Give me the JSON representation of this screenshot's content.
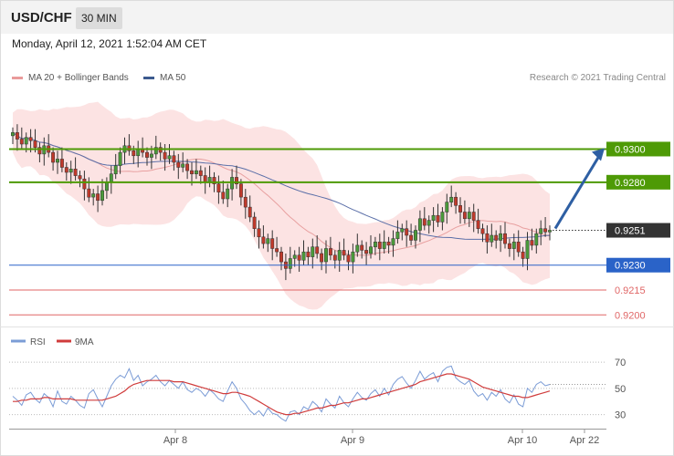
{
  "header": {
    "symbol": "USD/CHF",
    "timeframe": "30 MIN"
  },
  "timestamp": "Monday, April 12, 2021 1:52:04 AM CET",
  "copyright": "Research © 2021 Trading Central",
  "colors": {
    "bollinger_fill": "#fbd9d9",
    "ma20": "#e8a0a0",
    "ma50": "#5b6fa8",
    "bull_candle": "#4a9a3a",
    "bear_candle": "#c0392b",
    "resistance": "#4e9a06",
    "support": "#2a63c8",
    "minor_support": "#e06666",
    "arrow": "#2e5fa3",
    "current_price": "#333333",
    "rsi": "#7b9cd6",
    "rsi_ma": "#d03c3c"
  },
  "chart_data": [
    {
      "type": "candlestick",
      "legend": [
        {
          "name": "MA 20 + Bollinger Bands",
          "color": "#e99b9b"
        },
        {
          "name": "MA 50",
          "color": "#3c5a8f"
        }
      ],
      "y_range": [
        0.9193,
        0.9336
      ],
      "x_tick_labels": [
        "Apr 8",
        "Apr 9",
        "Apr 10",
        "Apr 22"
      ],
      "price_levels": [
        {
          "label": "0.9300",
          "value": 0.93,
          "kind": "resistance"
        },
        {
          "label": "0.9280",
          "value": 0.928,
          "kind": "resistance"
        },
        {
          "label": "0.9251",
          "value": 0.9251,
          "kind": "current"
        },
        {
          "label": "0.9230",
          "value": 0.923,
          "kind": "support"
        },
        {
          "label": "0.9215",
          "value": 0.9215,
          "kind": "minor"
        },
        {
          "label": "0.9200",
          "value": 0.92,
          "kind": "minor"
        }
      ],
      "close": [
        0.931,
        0.9306,
        0.9303,
        0.9307,
        0.9305,
        0.9301,
        0.9297,
        0.9302,
        0.9298,
        0.9292,
        0.9294,
        0.9289,
        0.9286,
        0.9288,
        0.9284,
        0.9282,
        0.9276,
        0.9271,
        0.9273,
        0.9269,
        0.9275,
        0.928,
        0.9285,
        0.929,
        0.9298,
        0.9302,
        0.9299,
        0.9296,
        0.93,
        0.9298,
        0.9295,
        0.9297,
        0.9301,
        0.9298,
        0.9294,
        0.9296,
        0.9292,
        0.9289,
        0.9291,
        0.9287,
        0.9285,
        0.9287,
        0.9284,
        0.928,
        0.9283,
        0.9279,
        0.9274,
        0.927,
        0.9276,
        0.9283,
        0.9279,
        0.9271,
        0.9265,
        0.9259,
        0.9252,
        0.9247,
        0.9243,
        0.9246,
        0.924,
        0.9238,
        0.9232,
        0.9228,
        0.9234,
        0.9236,
        0.9233,
        0.9238,
        0.9235,
        0.9241,
        0.9237,
        0.9232,
        0.924,
        0.9236,
        0.9233,
        0.9239,
        0.9236,
        0.9232,
        0.9238,
        0.9242,
        0.9239,
        0.9237,
        0.9241,
        0.9244,
        0.924,
        0.9244,
        0.9242,
        0.9246,
        0.925,
        0.9252,
        0.9248,
        0.9245,
        0.9251,
        0.9258,
        0.9254,
        0.9257,
        0.926,
        0.9256,
        0.9262,
        0.9268,
        0.9271,
        0.9266,
        0.9262,
        0.9258,
        0.9262,
        0.9257,
        0.9252,
        0.9249,
        0.9244,
        0.9248,
        0.9245,
        0.9249,
        0.9243,
        0.924,
        0.9244,
        0.9238,
        0.9234,
        0.9245,
        0.9242,
        0.9249,
        0.9252,
        0.925,
        0.9251
      ],
      "rsi_range": [
        20,
        77
      ],
      "rsi_levels": [
        70,
        50,
        30
      ],
      "rsi": [
        44,
        41,
        37,
        45,
        47,
        42,
        39,
        46,
        43,
        36,
        48,
        40,
        38,
        44,
        41,
        37,
        35,
        46,
        49,
        42,
        36,
        44,
        52,
        57,
        60,
        58,
        65,
        56,
        60,
        52,
        55,
        57,
        60,
        55,
        52,
        56,
        53,
        50,
        55,
        49,
        47,
        50,
        48,
        44,
        49,
        46,
        42,
        40,
        48,
        55,
        50,
        42,
        38,
        33,
        30,
        33,
        29,
        35,
        31,
        30,
        27,
        25,
        32,
        33,
        30,
        36,
        34,
        40,
        37,
        32,
        42,
        38,
        35,
        44,
        39,
        36,
        42,
        47,
        43,
        41,
        46,
        49,
        44,
        50,
        45,
        53,
        57,
        59,
        54,
        50,
        56,
        63,
        57,
        60,
        62,
        55,
        63,
        66,
        67,
        58,
        55,
        53,
        56,
        48,
        44,
        46,
        41,
        47,
        44,
        49,
        42,
        39,
        45,
        38,
        36,
        50,
        47,
        53,
        55,
        52,
        53
      ],
      "rsi_ma": [
        40,
        40,
        41,
        41,
        42,
        42,
        42,
        43,
        43,
        42,
        42,
        42,
        42,
        42,
        41,
        41,
        41,
        41,
        41,
        41,
        41,
        42,
        43,
        44,
        46,
        48,
        51,
        53,
        54,
        55,
        56,
        56,
        56,
        56,
        56,
        56,
        55,
        55,
        55,
        54,
        53,
        52,
        51,
        50,
        49,
        48,
        47,
        46,
        46,
        47,
        47,
        46,
        45,
        44,
        42,
        40,
        38,
        36,
        34,
        32,
        31,
        30,
        30,
        31,
        31,
        32,
        33,
        34,
        35,
        35,
        36,
        37,
        37,
        38,
        39,
        39,
        40,
        41,
        42,
        42,
        43,
        44,
        45,
        46,
        47,
        48,
        49,
        50,
        51,
        52,
        53,
        55,
        56,
        57,
        58,
        59,
        60,
        61,
        61,
        60,
        59,
        58,
        57,
        55,
        53,
        51,
        50,
        49,
        48,
        47,
        46,
        45,
        44,
        44,
        43,
        43,
        44,
        45,
        46,
        47,
        48
      ]
    }
  ]
}
